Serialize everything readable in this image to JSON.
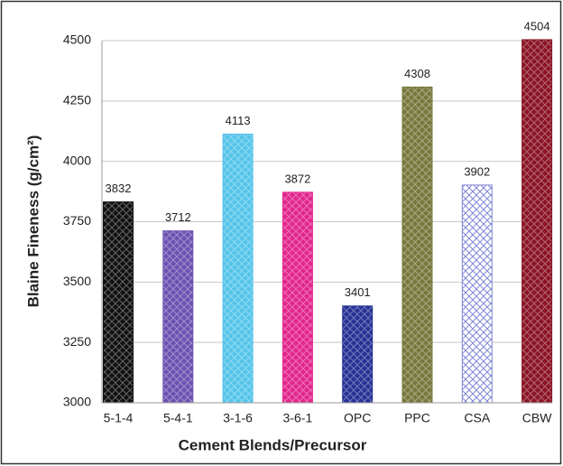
{
  "chart_data": {
    "type": "bar",
    "x_label": "Cement Blends/Precursor",
    "y_label": "Blaine Fineness (g/cm²)",
    "categories": [
      "5-1-4",
      "5-4-1",
      "3-1-6",
      "3-6-1",
      "OPC",
      "PPC",
      "CSA",
      "CBW"
    ],
    "values": [
      3832,
      3712,
      4113,
      3872,
      3401,
      4308,
      3902,
      4504
    ],
    "colors": [
      "#111111",
      "#6b52b0",
      "#55c4ea",
      "#e2268c",
      "#263294",
      "#77783c",
      "#c8ccf4",
      "#8a1426"
    ],
    "ylim": [
      3000,
      4500
    ],
    "yticks": [
      3000,
      3250,
      3500,
      3750,
      4000,
      4250,
      4500
    ],
    "grid": true
  }
}
